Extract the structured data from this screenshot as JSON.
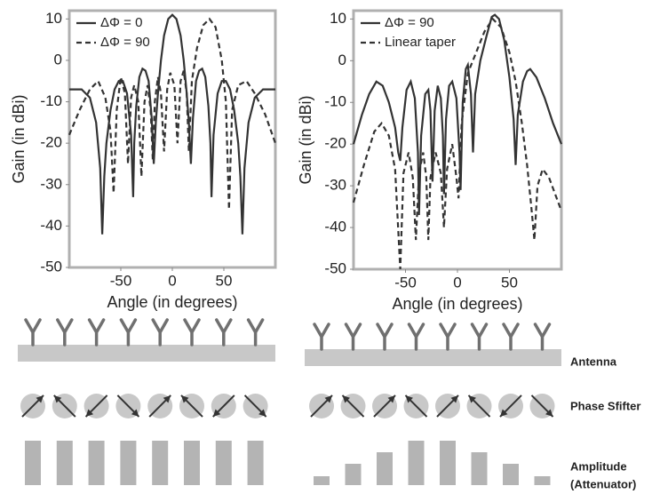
{
  "chart_data": [
    {
      "type": "line",
      "ylabel": "Gain (in dBi)",
      "xlabel": "Angle (in degrees)",
      "xlim": [
        -100,
        100
      ],
      "xticks": [
        -50,
        0,
        50
      ],
      "ylim": [
        -50,
        12
      ],
      "yticks": [
        10,
        0,
        -10,
        -20,
        -30,
        -40,
        -50
      ],
      "legend": "upper-left",
      "series": [
        {
          "name": "ΔΦ = 0",
          "color": "#333333",
          "dash": "solid",
          "x": [
            -100,
            -88,
            -80,
            -74,
            -70,
            -68,
            -66,
            -64,
            -60,
            -56,
            -52,
            -48,
            -44,
            -40,
            -38,
            -37,
            -35,
            -32,
            -29,
            -26,
            -23,
            -20,
            -18,
            -16,
            -14,
            -11,
            -8,
            -4,
            0,
            4,
            8,
            11,
            14,
            16,
            18,
            20,
            23,
            26,
            29,
            32,
            35,
            37,
            38,
            40,
            44,
            48,
            52,
            56,
            60,
            64,
            66,
            68,
            70,
            74,
            80,
            88,
            100
          ],
          "values": [
            -7,
            -7,
            -9,
            -15,
            -26,
            -42,
            -28,
            -20,
            -12,
            -7,
            -5,
            -5,
            -8,
            -18,
            -33,
            -20,
            -11,
            -4,
            -2,
            -2.5,
            -5,
            -14,
            -25,
            -15,
            -8,
            0,
            6,
            10,
            11,
            10,
            6,
            0,
            -8,
            -15,
            -25,
            -14,
            -5,
            -2.5,
            -2,
            -4,
            -11,
            -20,
            -33,
            -18,
            -8,
            -5,
            -5,
            -7,
            -12,
            -20,
            -28,
            -42,
            -26,
            -15,
            -9,
            -7,
            -7
          ]
        },
        {
          "name": "ΔΦ = 90",
          "color": "#333333",
          "dash": "dashed",
          "x": [
            -100,
            -90,
            -80,
            -72,
            -65,
            -60,
            -57,
            -54,
            -50,
            -46,
            -43,
            -40,
            -37,
            -33,
            -30,
            -27,
            -24,
            -21,
            -19,
            -17,
            -14,
            -11,
            -8,
            -5,
            -2,
            2,
            5,
            8,
            11,
            14,
            16,
            19,
            24,
            30,
            36,
            42,
            48,
            52,
            55,
            58,
            64,
            72,
            80,
            90,
            100
          ],
          "values": [
            -18,
            -12,
            -7,
            -5,
            -9,
            -17,
            -32,
            -12,
            -4,
            -8,
            -25,
            -9,
            -6,
            -10,
            -28,
            -10,
            -6,
            -12,
            -24,
            -10,
            -4,
            -8,
            -22,
            -7,
            -3,
            -6,
            -20,
            -5,
            -2.5,
            -8,
            -22,
            -5,
            3,
            8.5,
            10,
            8,
            0,
            -10,
            -36,
            -12,
            -6,
            -5,
            -8,
            -13,
            -20
          ]
        }
      ]
    },
    {
      "type": "line",
      "ylabel": "Gain (in dBi)",
      "xlabel": "Angle (in degrees)",
      "xlim": [
        -100,
        100
      ],
      "xticks": [
        -50,
        0,
        50
      ],
      "ylim": [
        -50,
        12
      ],
      "yticks": [
        10,
        0,
        -10,
        -20,
        -30,
        -40,
        -50
      ],
      "legend": "upper-left",
      "series": [
        {
          "name": "ΔΦ = 90",
          "color": "#333333",
          "dash": "solid",
          "x": [
            -100,
            -92,
            -85,
            -78,
            -72,
            -66,
            -60,
            -57,
            -55,
            -53,
            -49,
            -45,
            -41,
            -38,
            -37,
            -35,
            -31,
            -28,
            -26,
            -24,
            -22,
            -19,
            -16,
            -14,
            -13,
            -11,
            -8,
            -5,
            -1,
            2,
            3,
            5,
            8,
            10,
            13,
            15,
            17,
            22,
            28,
            33,
            36,
            40,
            45,
            50,
            54,
            56,
            58,
            63,
            67,
            70,
            76,
            84,
            92,
            100
          ],
          "values": [
            -20,
            -13,
            -8,
            -5,
            -6,
            -10,
            -16,
            -22,
            -24,
            -16,
            -7,
            -5,
            -9,
            -22,
            -37,
            -18,
            -8,
            -7,
            -12,
            -29,
            -12,
            -6,
            -9,
            -18,
            -32,
            -14,
            -6,
            -5,
            -9,
            -22,
            -31,
            -10,
            -2,
            -1,
            -8,
            -22,
            -8,
            0,
            6,
            10.5,
            11,
            10,
            5,
            -4,
            -14,
            -25,
            -13,
            -5,
            -2.5,
            -2,
            -4,
            -9,
            -15,
            -20
          ]
        },
        {
          "name": "Linear taper",
          "color": "#333333",
          "dash": "dashed",
          "x": [
            -100,
            -90,
            -80,
            -73,
            -66,
            -60,
            -55,
            -52,
            -47,
            -43,
            -40,
            -37,
            -33,
            -30,
            -28,
            -26,
            -21,
            -16,
            -13,
            -10,
            -5,
            -1,
            1,
            4,
            10,
            18,
            26,
            34,
            42,
            50,
            56,
            62,
            67,
            71,
            74,
            77,
            82,
            88,
            94,
            100
          ],
          "values": [
            -34,
            -25,
            -17,
            -15,
            -18,
            -26,
            -50,
            -27,
            -22,
            -28,
            -43,
            -27,
            -22,
            -28,
            -43,
            -28,
            -22,
            -27,
            -40,
            -26,
            -20,
            -28,
            -33,
            -15,
            -3,
            2,
            7,
            10,
            8,
            2,
            -5,
            -15,
            -25,
            -35,
            -43,
            -30,
            -26,
            -28,
            -32,
            -36
          ]
        }
      ]
    }
  ],
  "diagram": {
    "labels": [
      "Antenna",
      "Phase Sfifter",
      "Amplitude",
      "(Attenuator)"
    ]
  }
}
